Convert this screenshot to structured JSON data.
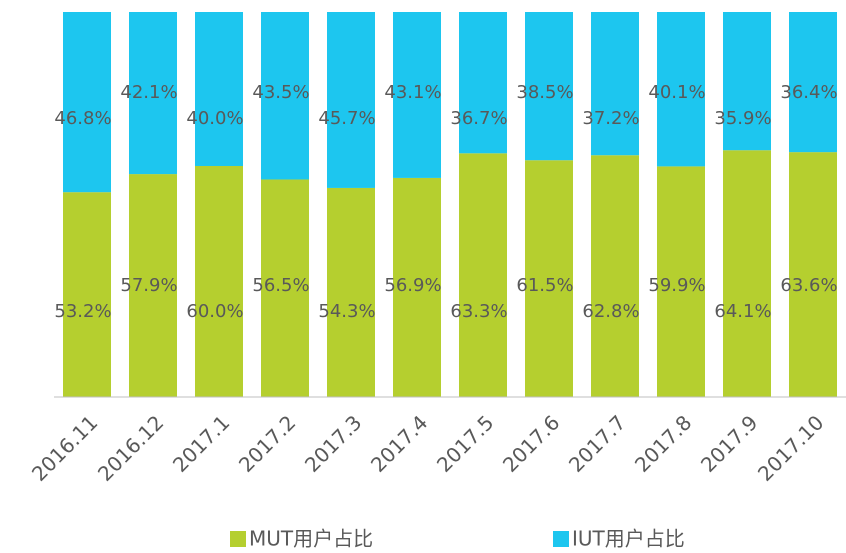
{
  "chart_data": {
    "type": "stacked_bar",
    "categories": [
      "2016.11",
      "2016.12",
      "2017.1",
      "2017.2",
      "2017.3",
      "2017.4",
      "2017.5",
      "2017.6",
      "2017.7",
      "2017.8",
      "2017.9",
      "2017.10"
    ],
    "series": [
      {
        "name": "MUT用户占比",
        "color": "#b5cf2f",
        "values": [
          53.2,
          57.9,
          60.0,
          56.5,
          54.3,
          56.9,
          63.3,
          61.5,
          62.8,
          59.9,
          64.1,
          63.6
        ],
        "value_labels": [
          "53.2%",
          "57.9%",
          "60.0%",
          "56.5%",
          "54.3%",
          "56.9%",
          "63.3%",
          "61.5%",
          "62.8%",
          "59.9%",
          "64.1%",
          "63.6%"
        ]
      },
      {
        "name": "IUT用户占比",
        "color": "#1dc6ef",
        "values": [
          46.8,
          42.1,
          40.0,
          43.5,
          45.7,
          43.1,
          36.7,
          38.5,
          37.2,
          40.1,
          35.9,
          36.4
        ],
        "value_labels": [
          "46.8%",
          "42.1%",
          "40.0%",
          "43.5%",
          "45.7%",
          "43.1%",
          "36.7%",
          "38.5%",
          "37.2%",
          "40.1%",
          "35.9%",
          "36.4%"
        ]
      }
    ],
    "legend": "bottom"
  }
}
